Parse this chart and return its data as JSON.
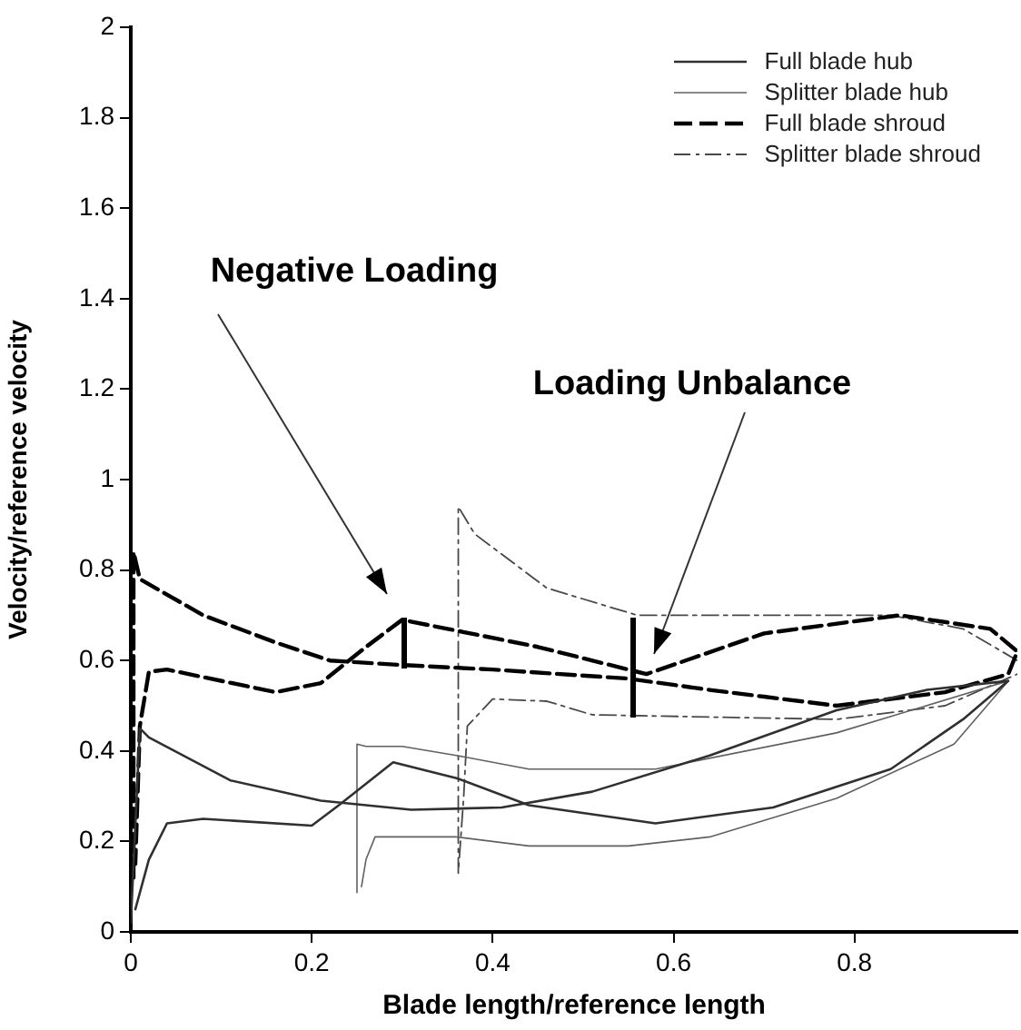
{
  "chart_data": {
    "type": "line",
    "xlabel": "Blade length/reference length",
    "ylabel": "Velocity/reference velocity",
    "xlim": [
      0,
      0.98
    ],
    "xticks": [
      0,
      0.2,
      0.4,
      0.6,
      0.8
    ],
    "ylim": [
      0,
      2
    ],
    "yticks": [
      0,
      0.2,
      0.4,
      0.6,
      0.8,
      1,
      1.2,
      1.4,
      1.6,
      1.8,
      2
    ],
    "grid": false,
    "legend": "top right",
    "marker": "none",
    "annotations": [
      "Negative Loading",
      "Loading Unbalance"
    ],
    "series": [
      {
        "name": "Full blade hub",
        "color": "#303030",
        "line_style": "solid",
        "x": [
          0,
          0.01,
          0.02,
          0.11,
          0.21,
          0.31,
          0.41,
          0.51,
          0.64,
          0.78,
          0.88,
          0.97,
          0.92,
          0.84,
          0.71,
          0.58,
          0.44,
          0.36,
          0.29,
          0.23,
          0.2,
          0.08,
          0.04,
          0.02,
          0.005
        ],
        "values": [
          0.02,
          0.45,
          0.43,
          0.335,
          0.29,
          0.27,
          0.275,
          0.31,
          0.39,
          0.49,
          0.535,
          0.555,
          0.47,
          0.36,
          0.275,
          0.24,
          0.28,
          0.34,
          0.375,
          0.28,
          0.235,
          0.25,
          0.24,
          0.16,
          0.05
        ]
      },
      {
        "name": "Splitter blade hub",
        "color": "#606060",
        "line_style": "solid",
        "x": [
          0.25,
          0.25,
          0.26,
          0.3,
          0.36,
          0.44,
          0.58,
          0.78,
          0.97,
          0.91,
          0.78,
          0.64,
          0.55,
          0.44,
          0.36,
          0.3,
          0.27,
          0.26,
          0.255
        ],
        "values": [
          0.087,
          0.415,
          0.41,
          0.41,
          0.39,
          0.36,
          0.36,
          0.44,
          0.555,
          0.415,
          0.295,
          0.21,
          0.19,
          0.19,
          0.21,
          0.21,
          0.21,
          0.16,
          0.1
        ]
      },
      {
        "name": "Full blade shroud",
        "color": "#000000",
        "line_style": "dashed",
        "x": [
          0.003,
          0.003,
          0.01,
          0.08,
          0.16,
          0.22,
          0.3,
          0.4,
          0.55,
          0.64,
          0.7,
          0.78,
          0.9,
          0.97,
          0.98,
          0.95,
          0.85,
          0.7,
          0.57,
          0.45,
          0.35,
          0.3,
          0.26,
          0.21,
          0.16,
          0.04,
          0.02,
          0.01,
          0.005
        ],
        "values": [
          0.12,
          0.84,
          0.78,
          0.7,
          0.64,
          0.6,
          0.59,
          0.58,
          0.56,
          0.535,
          0.52,
          0.5,
          0.53,
          0.57,
          0.62,
          0.67,
          0.7,
          0.66,
          0.57,
          0.63,
          0.67,
          0.69,
          0.63,
          0.55,
          0.53,
          0.58,
          0.575,
          0.455,
          0.15
        ]
      },
      {
        "name": "Splitter blade shroud",
        "color": "#484848",
        "line_style": "dashdot",
        "x": [
          0.98,
          0.92,
          0.84,
          0.7,
          0.56,
          0.46,
          0.38,
          0.362,
          0.362,
          0.368,
          0.372,
          0.4,
          0.46,
          0.51,
          0.64,
          0.78,
          0.9,
          0.98
        ],
        "values": [
          0.6,
          0.67,
          0.7,
          0.7,
          0.7,
          0.76,
          0.88,
          0.94,
          0.13,
          0.3,
          0.455,
          0.515,
          0.51,
          0.48,
          0.475,
          0.47,
          0.5,
          0.57
        ]
      }
    ]
  }
}
